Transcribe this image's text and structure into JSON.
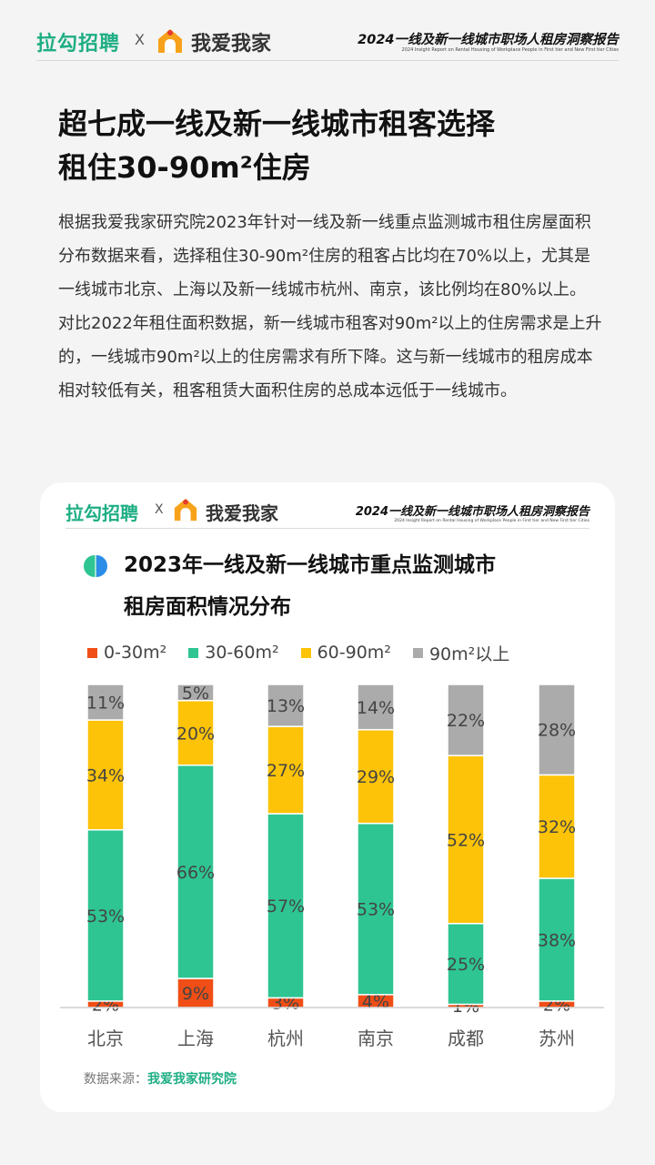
{
  "header": {
    "brand_left": "拉勾招聘",
    "separator": "X",
    "brand_right": "我爱我家",
    "report_title": "2024一线及新一线城市职场人租房洞察报告",
    "report_subtitle": "2024 Insight Report on Rental Housing of Workplace People in First tier and New First tier Cities"
  },
  "headline": {
    "line1": "超七成一线及新一线城市租客选择",
    "line2": "租住30-90m²住房"
  },
  "body": {
    "paragraph1": "根据我爱我家研究院2023年针对一线及新一线重点监测城市租住房屋面积分布数据来看，选择租住30-90m²住房的租客占比均在70%以上，尤其是一线城市北京、上海以及新一线城市杭州、南京，该比例均在80%以上。",
    "paragraph2": "对比2022年租住面积数据，新一线城市租客对90m²以上的住房需求是上升的，一线城市90m²以上的住房需求有所下降。这与新一线城市的租房成本相对较低有关，租客租赁大面积住房的总成本远低于一线城市。"
  },
  "card": {
    "brand_left": "拉勾招聘",
    "separator": "X",
    "brand_right": "我爱我家",
    "report_title": "2024一线及新一线城市职场人租房洞察报告",
    "report_subtitle": "2024 Insight Report on Rental Housing of Workplace People in First tier and New First tier Cities",
    "source_label": "数据来源：",
    "source_name": "我爱我家研究院"
  },
  "colors": {
    "brand_green": "#1fae84",
    "series": [
      "#f04e16",
      "#2ec592",
      "#fdc308",
      "#ababab"
    ]
  },
  "chart_data": {
    "type": "bar",
    "stacked": true,
    "percent": true,
    "title_line1": "2023年一线及新一线城市重点监测城市",
    "title_line2": "租房面积情况分布",
    "categories": [
      "北京",
      "上海",
      "杭州",
      "南京",
      "成都",
      "苏州"
    ],
    "series": [
      {
        "name": "0-30m²",
        "values": [
          2,
          9,
          3,
          4,
          1,
          2
        ]
      },
      {
        "name": "30-60m²",
        "values": [
          53,
          66,
          57,
          53,
          25,
          38
        ]
      },
      {
        "name": "60-90m²",
        "values": [
          34,
          20,
          27,
          29,
          52,
          32
        ]
      },
      {
        "name": "90m²以上",
        "values": [
          11,
          5,
          13,
          14,
          22,
          28
        ]
      }
    ],
    "ylim": [
      0,
      100
    ],
    "legend_position": "top",
    "grid": false
  }
}
